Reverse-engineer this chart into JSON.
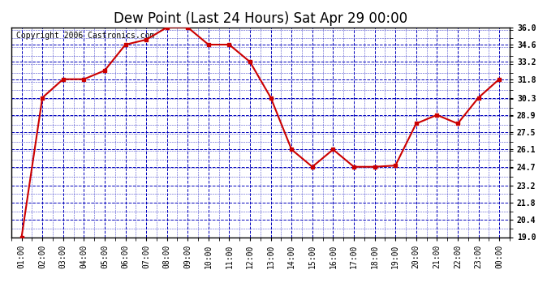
{
  "title": "Dew Point (Last 24 Hours) Sat Apr 29 00:00",
  "copyright": "Copyright 2006 Castronics.com",
  "x_labels": [
    "01:00",
    "02:00",
    "03:00",
    "04:00",
    "05:00",
    "06:00",
    "07:00",
    "08:00",
    "09:00",
    "10:00",
    "11:00",
    "12:00",
    "13:00",
    "14:00",
    "15:00",
    "16:00",
    "17:00",
    "18:00",
    "19:00",
    "20:00",
    "21:00",
    "22:00",
    "23:00",
    "00:00"
  ],
  "x_values": [
    1,
    2,
    3,
    4,
    5,
    6,
    7,
    8,
    9,
    10,
    11,
    12,
    13,
    14,
    15,
    16,
    17,
    18,
    19,
    20,
    21,
    22,
    23,
    24
  ],
  "y_values": [
    19.0,
    30.3,
    31.8,
    31.8,
    32.5,
    34.6,
    35.0,
    36.0,
    36.0,
    34.6,
    34.6,
    33.2,
    30.3,
    26.1,
    24.7,
    26.1,
    24.7,
    24.7,
    24.8,
    28.2,
    28.9,
    28.2,
    30.3,
    31.8
  ],
  "ylim": [
    19.0,
    36.0
  ],
  "yticks": [
    19.0,
    20.4,
    21.8,
    23.2,
    24.7,
    26.1,
    27.5,
    28.9,
    30.3,
    31.8,
    33.2,
    34.6,
    36.0
  ],
  "line_color": "#cc0000",
  "marker_color": "#cc0000",
  "fig_bg_color": "#ffffff",
  "plot_bg_color": "#ffffff",
  "grid_color": "#0000bb",
  "title_fontsize": 12,
  "tick_fontsize": 7,
  "copyright_fontsize": 7
}
